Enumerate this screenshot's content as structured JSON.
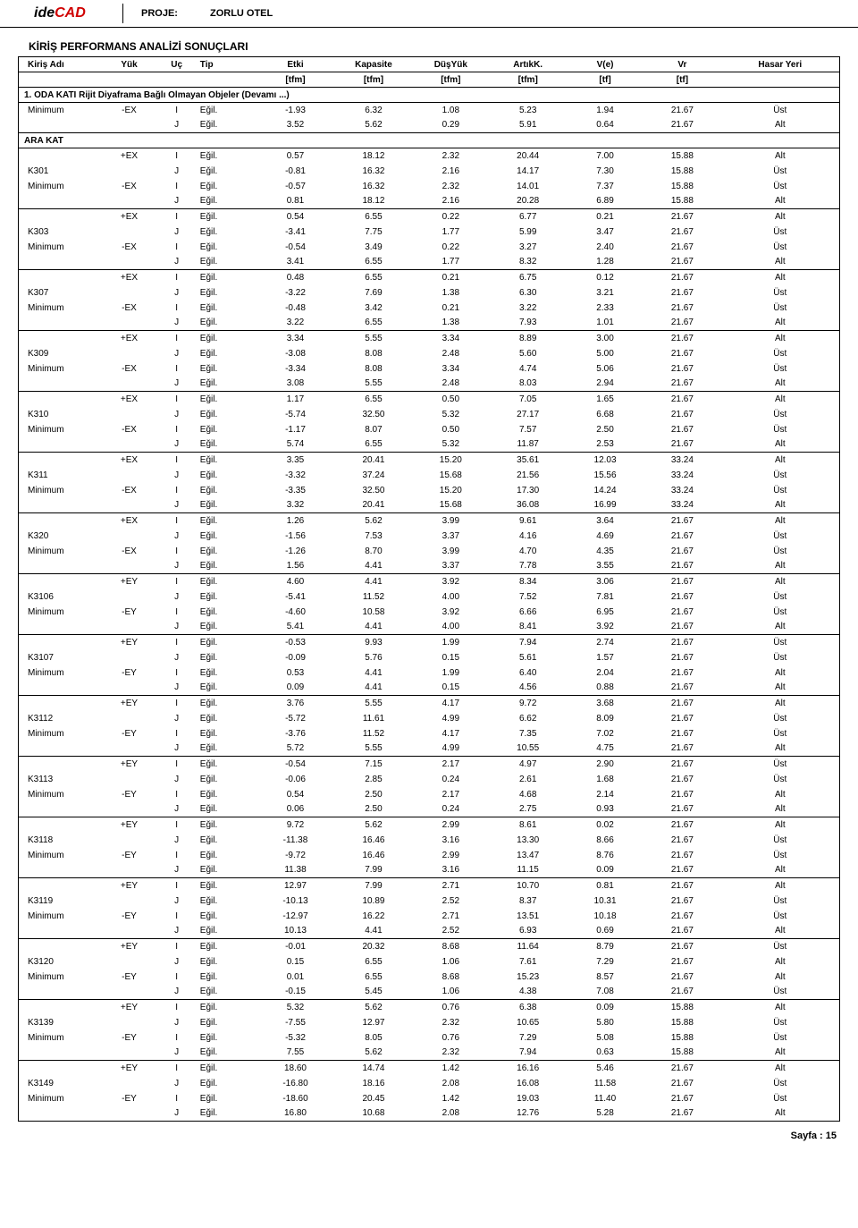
{
  "header": {
    "logo_ide": "ide",
    "logo_cad": "CAD",
    "proje_label": "PROJE:",
    "proje_name": "ZORLU OTEL"
  },
  "section_title": "KİRİŞ PERFORMANS ANALİZİ SONUÇLARI",
  "columns": [
    "Kiriş Adı",
    "Yük",
    "Uç",
    "Tip",
    "Etki",
    "Kapasite",
    "DüşYük",
    "ArtıkK.",
    "V(e)",
    "Vr",
    "Hasar Yeri"
  ],
  "units": [
    "",
    "",
    "",
    "",
    "[tfm]",
    "[tfm]",
    "[tfm]",
    "[tfm]",
    "[tf]",
    "[tf]",
    ""
  ],
  "section_header": "1. ODA KATI Rijit Diyaframa Bağlı Olmayan Objeler   (Devamı ...)",
  "ara_kat_label": "ARA KAT",
  "continuation_rows": [
    [
      "Minimum",
      "-EX",
      "I",
      "Eğil.",
      "-1.93",
      "6.32",
      "1.08",
      "5.23",
      "1.94",
      "21.67",
      "Üst"
    ],
    [
      "",
      "",
      "J",
      "Eğil.",
      "3.52",
      "5.62",
      "0.29",
      "5.91",
      "0.64",
      "21.67",
      "Alt"
    ]
  ],
  "groups": [
    {
      "name": "K301",
      "rows": [
        [
          "",
          "+EX",
          "I",
          "Eğil.",
          "0.57",
          "18.12",
          "2.32",
          "20.44",
          "7.00",
          "15.88",
          "Alt"
        ],
        [
          "K301",
          "",
          "J",
          "Eğil.",
          "-0.81",
          "16.32",
          "2.16",
          "14.17",
          "7.30",
          "15.88",
          "Üst"
        ],
        [
          "Minimum",
          "-EX",
          "I",
          "Eğil.",
          "-0.57",
          "16.32",
          "2.32",
          "14.01",
          "7.37",
          "15.88",
          "Üst"
        ],
        [
          "",
          "",
          "J",
          "Eğil.",
          "0.81",
          "18.12",
          "2.16",
          "20.28",
          "6.89",
          "15.88",
          "Alt"
        ]
      ]
    },
    {
      "name": "K303",
      "rows": [
        [
          "",
          "+EX",
          "I",
          "Eğil.",
          "0.54",
          "6.55",
          "0.22",
          "6.77",
          "0.21",
          "21.67",
          "Alt"
        ],
        [
          "K303",
          "",
          "J",
          "Eğil.",
          "-3.41",
          "7.75",
          "1.77",
          "5.99",
          "3.47",
          "21.67",
          "Üst"
        ],
        [
          "Minimum",
          "-EX",
          "I",
          "Eğil.",
          "-0.54",
          "3.49",
          "0.22",
          "3.27",
          "2.40",
          "21.67",
          "Üst"
        ],
        [
          "",
          "",
          "J",
          "Eğil.",
          "3.41",
          "6.55",
          "1.77",
          "8.32",
          "1.28",
          "21.67",
          "Alt"
        ]
      ]
    },
    {
      "name": "K307",
      "rows": [
        [
          "",
          "+EX",
          "I",
          "Eğil.",
          "0.48",
          "6.55",
          "0.21",
          "6.75",
          "0.12",
          "21.67",
          "Alt"
        ],
        [
          "K307",
          "",
          "J",
          "Eğil.",
          "-3.22",
          "7.69",
          "1.38",
          "6.30",
          "3.21",
          "21.67",
          "Üst"
        ],
        [
          "Minimum",
          "-EX",
          "I",
          "Eğil.",
          "-0.48",
          "3.42",
          "0.21",
          "3.22",
          "2.33",
          "21.67",
          "Üst"
        ],
        [
          "",
          "",
          "J",
          "Eğil.",
          "3.22",
          "6.55",
          "1.38",
          "7.93",
          "1.01",
          "21.67",
          "Alt"
        ]
      ]
    },
    {
      "name": "K309",
      "rows": [
        [
          "",
          "+EX",
          "I",
          "Eğil.",
          "3.34",
          "5.55",
          "3.34",
          "8.89",
          "3.00",
          "21.67",
          "Alt"
        ],
        [
          "K309",
          "",
          "J",
          "Eğil.",
          "-3.08",
          "8.08",
          "2.48",
          "5.60",
          "5.00",
          "21.67",
          "Üst"
        ],
        [
          "Minimum",
          "-EX",
          "I",
          "Eğil.",
          "-3.34",
          "8.08",
          "3.34",
          "4.74",
          "5.06",
          "21.67",
          "Üst"
        ],
        [
          "",
          "",
          "J",
          "Eğil.",
          "3.08",
          "5.55",
          "2.48",
          "8.03",
          "2.94",
          "21.67",
          "Alt"
        ]
      ]
    },
    {
      "name": "K310",
      "rows": [
        [
          "",
          "+EX",
          "I",
          "Eğil.",
          "1.17",
          "6.55",
          "0.50",
          "7.05",
          "1.65",
          "21.67",
          "Alt"
        ],
        [
          "K310",
          "",
          "J",
          "Eğil.",
          "-5.74",
          "32.50",
          "5.32",
          "27.17",
          "6.68",
          "21.67",
          "Üst"
        ],
        [
          "Minimum",
          "-EX",
          "I",
          "Eğil.",
          "-1.17",
          "8.07",
          "0.50",
          "7.57",
          "2.50",
          "21.67",
          "Üst"
        ],
        [
          "",
          "",
          "J",
          "Eğil.",
          "5.74",
          "6.55",
          "5.32",
          "11.87",
          "2.53",
          "21.67",
          "Alt"
        ]
      ]
    },
    {
      "name": "K311",
      "rows": [
        [
          "",
          "+EX",
          "I",
          "Eğil.",
          "3.35",
          "20.41",
          "15.20",
          "35.61",
          "12.03",
          "33.24",
          "Alt"
        ],
        [
          "K311",
          "",
          "J",
          "Eğil.",
          "-3.32",
          "37.24",
          "15.68",
          "21.56",
          "15.56",
          "33.24",
          "Üst"
        ],
        [
          "Minimum",
          "-EX",
          "I",
          "Eğil.",
          "-3.35",
          "32.50",
          "15.20",
          "17.30",
          "14.24",
          "33.24",
          "Üst"
        ],
        [
          "",
          "",
          "J",
          "Eğil.",
          "3.32",
          "20.41",
          "15.68",
          "36.08",
          "16.99",
          "33.24",
          "Alt"
        ]
      ]
    },
    {
      "name": "K320",
      "rows": [
        [
          "",
          "+EX",
          "I",
          "Eğil.",
          "1.26",
          "5.62",
          "3.99",
          "9.61",
          "3.64",
          "21.67",
          "Alt"
        ],
        [
          "K320",
          "",
          "J",
          "Eğil.",
          "-1.56",
          "7.53",
          "3.37",
          "4.16",
          "4.69",
          "21.67",
          "Üst"
        ],
        [
          "Minimum",
          "-EX",
          "I",
          "Eğil.",
          "-1.26",
          "8.70",
          "3.99",
          "4.70",
          "4.35",
          "21.67",
          "Üst"
        ],
        [
          "",
          "",
          "J",
          "Eğil.",
          "1.56",
          "4.41",
          "3.37",
          "7.78",
          "3.55",
          "21.67",
          "Alt"
        ]
      ]
    },
    {
      "name": "K3106",
      "rows": [
        [
          "",
          "+EY",
          "I",
          "Eğil.",
          "4.60",
          "4.41",
          "3.92",
          "8.34",
          "3.06",
          "21.67",
          "Alt"
        ],
        [
          "K3106",
          "",
          "J",
          "Eğil.",
          "-5.41",
          "11.52",
          "4.00",
          "7.52",
          "7.81",
          "21.67",
          "Üst"
        ],
        [
          "Minimum",
          "-EY",
          "I",
          "Eğil.",
          "-4.60",
          "10.58",
          "3.92",
          "6.66",
          "6.95",
          "21.67",
          "Üst"
        ],
        [
          "",
          "",
          "J",
          "Eğil.",
          "5.41",
          "4.41",
          "4.00",
          "8.41",
          "3.92",
          "21.67",
          "Alt"
        ]
      ]
    },
    {
      "name": "K3107",
      "rows": [
        [
          "",
          "+EY",
          "I",
          "Eğil.",
          "-0.53",
          "9.93",
          "1.99",
          "7.94",
          "2.74",
          "21.67",
          "Üst"
        ],
        [
          "K3107",
          "",
          "J",
          "Eğil.",
          "-0.09",
          "5.76",
          "0.15",
          "5.61",
          "1.57",
          "21.67",
          "Üst"
        ],
        [
          "Minimum",
          "-EY",
          "I",
          "Eğil.",
          "0.53",
          "4.41",
          "1.99",
          "6.40",
          "2.04",
          "21.67",
          "Alt"
        ],
        [
          "",
          "",
          "J",
          "Eğil.",
          "0.09",
          "4.41",
          "0.15",
          "4.56",
          "0.88",
          "21.67",
          "Alt"
        ]
      ]
    },
    {
      "name": "K3112",
      "rows": [
        [
          "",
          "+EY",
          "I",
          "Eğil.",
          "3.76",
          "5.55",
          "4.17",
          "9.72",
          "3.68",
          "21.67",
          "Alt"
        ],
        [
          "K3112",
          "",
          "J",
          "Eğil.",
          "-5.72",
          "11.61",
          "4.99",
          "6.62",
          "8.09",
          "21.67",
          "Üst"
        ],
        [
          "Minimum",
          "-EY",
          "I",
          "Eğil.",
          "-3.76",
          "11.52",
          "4.17",
          "7.35",
          "7.02",
          "21.67",
          "Üst"
        ],
        [
          "",
          "",
          "J",
          "Eğil.",
          "5.72",
          "5.55",
          "4.99",
          "10.55",
          "4.75",
          "21.67",
          "Alt"
        ]
      ]
    },
    {
      "name": "K3113",
      "rows": [
        [
          "",
          "+EY",
          "I",
          "Eğil.",
          "-0.54",
          "7.15",
          "2.17",
          "4.97",
          "2.90",
          "21.67",
          "Üst"
        ],
        [
          "K3113",
          "",
          "J",
          "Eğil.",
          "-0.06",
          "2.85",
          "0.24",
          "2.61",
          "1.68",
          "21.67",
          "Üst"
        ],
        [
          "Minimum",
          "-EY",
          "I",
          "Eğil.",
          "0.54",
          "2.50",
          "2.17",
          "4.68",
          "2.14",
          "21.67",
          "Alt"
        ],
        [
          "",
          "",
          "J",
          "Eğil.",
          "0.06",
          "2.50",
          "0.24",
          "2.75",
          "0.93",
          "21.67",
          "Alt"
        ]
      ]
    },
    {
      "name": "K3118",
      "rows": [
        [
          "",
          "+EY",
          "I",
          "Eğil.",
          "9.72",
          "5.62",
          "2.99",
          "8.61",
          "0.02",
          "21.67",
          "Alt"
        ],
        [
          "K3118",
          "",
          "J",
          "Eğil.",
          "-11.38",
          "16.46",
          "3.16",
          "13.30",
          "8.66",
          "21.67",
          "Üst"
        ],
        [
          "Minimum",
          "-EY",
          "I",
          "Eğil.",
          "-9.72",
          "16.46",
          "2.99",
          "13.47",
          "8.76",
          "21.67",
          "Üst"
        ],
        [
          "",
          "",
          "J",
          "Eğil.",
          "11.38",
          "7.99",
          "3.16",
          "11.15",
          "0.09",
          "21.67",
          "Alt"
        ]
      ]
    },
    {
      "name": "K3119",
      "rows": [
        [
          "",
          "+EY",
          "I",
          "Eğil.",
          "12.97",
          "7.99",
          "2.71",
          "10.70",
          "0.81",
          "21.67",
          "Alt"
        ],
        [
          "K3119",
          "",
          "J",
          "Eğil.",
          "-10.13",
          "10.89",
          "2.52",
          "8.37",
          "10.31",
          "21.67",
          "Üst"
        ],
        [
          "Minimum",
          "-EY",
          "I",
          "Eğil.",
          "-12.97",
          "16.22",
          "2.71",
          "13.51",
          "10.18",
          "21.67",
          "Üst"
        ],
        [
          "",
          "",
          "J",
          "Eğil.",
          "10.13",
          "4.41",
          "2.52",
          "6.93",
          "0.69",
          "21.67",
          "Alt"
        ]
      ]
    },
    {
      "name": "K3120",
      "rows": [
        [
          "",
          "+EY",
          "I",
          "Eğil.",
          "-0.01",
          "20.32",
          "8.68",
          "11.64",
          "8.79",
          "21.67",
          "Üst"
        ],
        [
          "K3120",
          "",
          "J",
          "Eğil.",
          "0.15",
          "6.55",
          "1.06",
          "7.61",
          "7.29",
          "21.67",
          "Alt"
        ],
        [
          "Minimum",
          "-EY",
          "I",
          "Eğil.",
          "0.01",
          "6.55",
          "8.68",
          "15.23",
          "8.57",
          "21.67",
          "Alt"
        ],
        [
          "",
          "",
          "J",
          "Eğil.",
          "-0.15",
          "5.45",
          "1.06",
          "4.38",
          "7.08",
          "21.67",
          "Üst"
        ]
      ]
    },
    {
      "name": "K3139",
      "rows": [
        [
          "",
          "+EY",
          "I",
          "Eğil.",
          "5.32",
          "5.62",
          "0.76",
          "6.38",
          "0.09",
          "15.88",
          "Alt"
        ],
        [
          "K3139",
          "",
          "J",
          "Eğil.",
          "-7.55",
          "12.97",
          "2.32",
          "10.65",
          "5.80",
          "15.88",
          "Üst"
        ],
        [
          "Minimum",
          "-EY",
          "I",
          "Eğil.",
          "-5.32",
          "8.05",
          "0.76",
          "7.29",
          "5.08",
          "15.88",
          "Üst"
        ],
        [
          "",
          "",
          "J",
          "Eğil.",
          "7.55",
          "5.62",
          "2.32",
          "7.94",
          "0.63",
          "15.88",
          "Alt"
        ]
      ]
    },
    {
      "name": "K3149",
      "rows": [
        [
          "",
          "+EY",
          "I",
          "Eğil.",
          "18.60",
          "14.74",
          "1.42",
          "16.16",
          "5.46",
          "21.67",
          "Alt"
        ],
        [
          "K3149",
          "",
          "J",
          "Eğil.",
          "-16.80",
          "18.16",
          "2.08",
          "16.08",
          "11.58",
          "21.67",
          "Üst"
        ],
        [
          "Minimum",
          "-EY",
          "I",
          "Eğil.",
          "-18.60",
          "20.45",
          "1.42",
          "19.03",
          "11.40",
          "21.67",
          "Üst"
        ],
        [
          "",
          "",
          "J",
          "Eğil.",
          "16.80",
          "10.68",
          "2.08",
          "12.76",
          "5.28",
          "21.67",
          "Alt"
        ]
      ]
    }
  ],
  "footer": "Sayfa : 15",
  "colors": {
    "text": "#000000",
    "bg": "#ffffff",
    "logo_red": "#d00000",
    "border": "#000000"
  }
}
